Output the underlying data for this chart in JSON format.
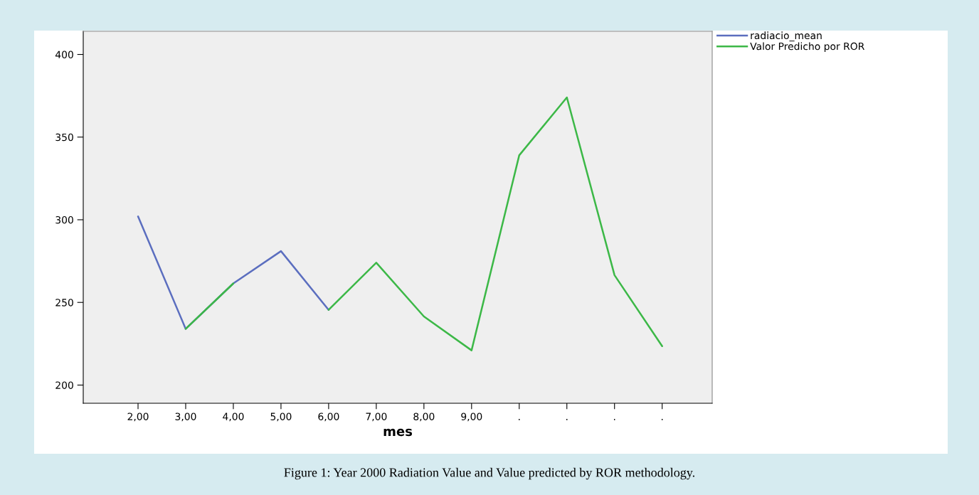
{
  "chart_data": {
    "type": "line",
    "xlabel": "mes",
    "categories": [
      "2,00",
      "3,00",
      "4,00",
      "5,00",
      "6,00",
      "7,00",
      "8,00",
      "9,00",
      ".",
      ".",
      ".",
      "."
    ],
    "ylim": [
      189,
      414
    ],
    "yticks": [
      200,
      250,
      300,
      350,
      400
    ],
    "series": [
      {
        "name": "radiacio_mean",
        "color": "#5b6ebf",
        "values": [
          302,
          234,
          261.5,
          281,
          245.5,
          null,
          null,
          null,
          null,
          null,
          null,
          null
        ]
      },
      {
        "name": "Valor Predicho por ROR",
        "color": "#3cb847",
        "values": [
          null,
          234,
          261.5,
          null,
          245.5,
          274,
          241.5,
          221,
          339,
          374,
          266.5,
          223.5
        ]
      }
    ],
    "legend": "top right",
    "grid": false,
    "marker": "none",
    "line_style": "solid",
    "annotations": [
      "Figure 1: Year 2000 Radiation Value and Value predicted by ROR methodology."
    ]
  }
}
